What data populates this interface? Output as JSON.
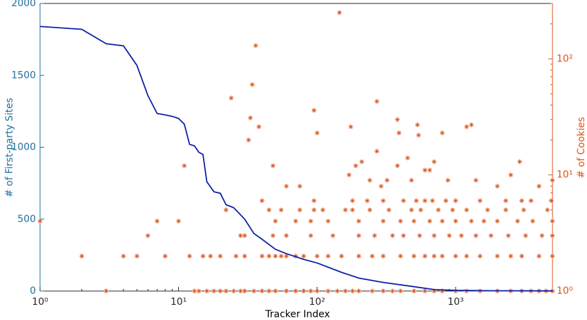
{
  "chart_data": {
    "type": "combo",
    "xlabel": "Tracker Index",
    "ylabel": "# of First-party Sites",
    "y2label": "# of Cookies",
    "xscale": "log",
    "y2scale": "log",
    "xlim": [
      1,
      5000
    ],
    "ylim": [
      0,
      2000
    ],
    "y2lim": [
      1,
      300
    ],
    "xticks": [
      {
        "value": 1,
        "label": "10⁰"
      },
      {
        "value": 10,
        "label": "10¹"
      },
      {
        "value": 100,
        "label": "10²"
      },
      {
        "value": 1000,
        "label": "10³"
      }
    ],
    "yticks": [
      0,
      500,
      1000,
      1500,
      2000
    ],
    "y2ticks": [
      {
        "value": 1,
        "label": "10⁰"
      },
      {
        "value": 10,
        "label": "10¹"
      },
      {
        "value": 100,
        "label": "10²"
      }
    ],
    "ycolor": "#1f6f9f",
    "y2color": "#d95319",
    "series": [
      {
        "type": "line",
        "color": "#0a1fa8",
        "x": [
          1,
          2,
          3,
          4,
          5,
          6,
          7,
          8,
          9,
          10,
          11,
          12,
          13,
          14,
          15,
          16,
          18,
          20,
          22,
          25,
          30,
          35,
          40,
          50,
          60,
          80,
          100,
          150,
          200,
          300,
          500,
          700,
          1000,
          2000,
          5000
        ],
        "values": [
          1840,
          1820,
          1720,
          1705,
          1570,
          1360,
          1235,
          1225,
          1215,
          1200,
          1160,
          1020,
          1010,
          965,
          950,
          760,
          690,
          680,
          600,
          580,
          500,
          400,
          360,
          290,
          260,
          220,
          195,
          130,
          90,
          60,
          30,
          10,
          5,
          2,
          1
        ]
      },
      {
        "type": "scatter",
        "color": "#d95319",
        "axis": "y2",
        "x": [
          3,
          13,
          14,
          16,
          18,
          20,
          22,
          25,
          28,
          30,
          35,
          40,
          45,
          50,
          60,
          70,
          80,
          90,
          100,
          120,
          140,
          160,
          180,
          200,
          250,
          300,
          350,
          400,
          500,
          600,
          700,
          800,
          1000,
          1200,
          1500,
          2000,
          2500,
          3000,
          3500,
          4000,
          4500,
          5000,
          2,
          4,
          5,
          8,
          12,
          15,
          17,
          20,
          26,
          30,
          40,
          45,
          50,
          55,
          60,
          70,
          80,
          100,
          120,
          150,
          200,
          250,
          300,
          400,
          500,
          600,
          700,
          800,
          1000,
          1200,
          1500,
          2000,
          2500,
          3000,
          4000,
          5000,
          6,
          28,
          30,
          48,
          60,
          90,
          130,
          200,
          260,
          350,
          420,
          550,
          700,
          900,
          1100,
          1400,
          1800,
          2400,
          3200,
          4200,
          5000,
          1,
          7,
          10,
          50,
          70,
          90,
          120,
          200,
          300,
          400,
          500,
          650,
          800,
          1000,
          1300,
          1600,
          2000,
          2800,
          3600,
          5000,
          22,
          45,
          55,
          75,
          95,
          110,
          160,
          180,
          240,
          330,
          480,
          560,
          750,
          950,
          1200,
          1700,
          2300,
          3100,
          4600,
          40,
          95,
          180,
          230,
          300,
          420,
          520,
          600,
          680,
          850,
          1000,
          1500,
          2300,
          3000,
          3500,
          4900,
          11,
          48,
          60,
          75,
          170,
          190,
          210,
          240,
          290,
          320,
          380,
          480,
          600,
          700,
          880,
          1400,
          2000,
          2500,
          2900,
          4000,
          5000,
          145,
          36,
          34,
          24,
          33,
          38,
          32,
          95,
          100,
          270,
          175,
          380,
          390,
          530,
          540,
          800,
          1200,
          1300,
          450,
          270,
          650
        ],
        "values": [
          1,
          1,
          1,
          1,
          1,
          1,
          1,
          1,
          1,
          1,
          1,
          1,
          1,
          1,
          1,
          1,
          1,
          1,
          1,
          1,
          1,
          1,
          1,
          1,
          1,
          1,
          1,
          1,
          1,
          1,
          1,
          1,
          1,
          1,
          1,
          1,
          1,
          1,
          1,
          1,
          1,
          1,
          2,
          2,
          2,
          2,
          2,
          2,
          2,
          2,
          2,
          2,
          2,
          2,
          2,
          2,
          2,
          2,
          2,
          2,
          2,
          2,
          2,
          2,
          2,
          2,
          2,
          2,
          2,
          2,
          2,
          2,
          2,
          2,
          2,
          2,
          2,
          2,
          3,
          3,
          3,
          3,
          3,
          3,
          3,
          3,
          3,
          3,
          3,
          3,
          3,
          3,
          3,
          3,
          3,
          3,
          3,
          3,
          3,
          4,
          4,
          4,
          4,
          4,
          4,
          4,
          4,
          4,
          4,
          4,
          4,
          4,
          4,
          4,
          4,
          4,
          4,
          4,
          4,
          5,
          5,
          5,
          5,
          5,
          5,
          5,
          5,
          5,
          5,
          5,
          5,
          5,
          5,
          5,
          5,
          5,
          5,
          5,
          6,
          6,
          6,
          6,
          6,
          6,
          6,
          6,
          6,
          6,
          6,
          6,
          6,
          6,
          6,
          6,
          12,
          12,
          8,
          8,
          10,
          12,
          13,
          9,
          8,
          9,
          12,
          9,
          11,
          13,
          9,
          9,
          8,
          10,
          13,
          8,
          9,
          250,
          130,
          60,
          46,
          31,
          26,
          20,
          36,
          23,
          43,
          26,
          30,
          23,
          27,
          22,
          23,
          26,
          27,
          14,
          16,
          11
        ]
      }
    ]
  }
}
